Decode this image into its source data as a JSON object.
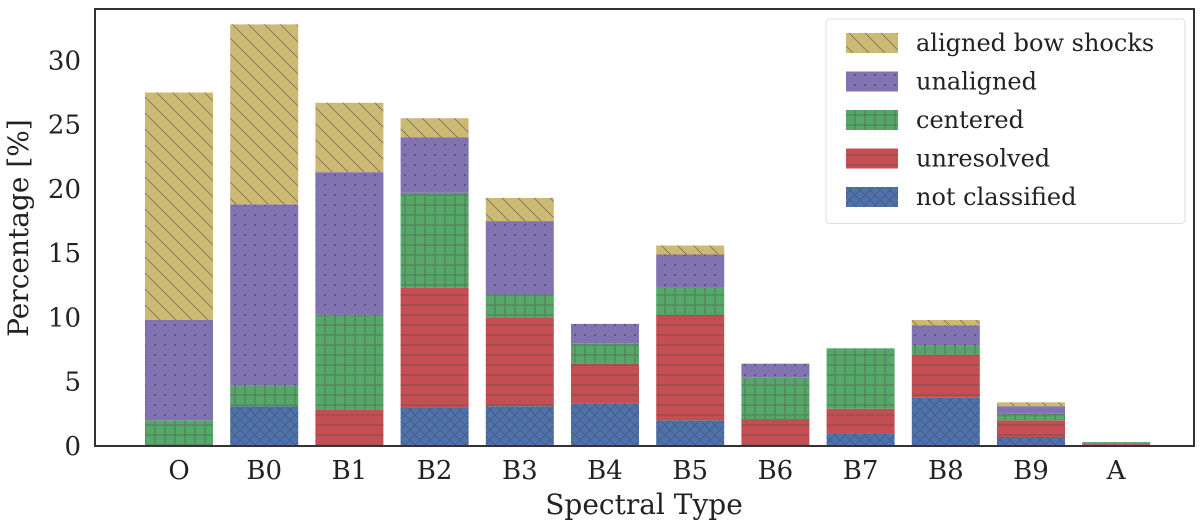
{
  "chart_data": {
    "type": "bar",
    "stacked": true,
    "title": "",
    "xlabel": "Spectral Type",
    "ylabel": "Percentage [%]",
    "ylim": [
      0,
      34
    ],
    "yticks": [
      0,
      5,
      10,
      15,
      20,
      25,
      30
    ],
    "grid": false,
    "legend_position": "top-right",
    "categories": [
      "O",
      "B0",
      "B1",
      "B2",
      "B3",
      "B4",
      "B5",
      "B6",
      "B7",
      "B8",
      "B9",
      "A"
    ],
    "series": [
      {
        "name": "not classified",
        "color": "#4c72b0",
        "hatch": "crosshatch",
        "values": [
          0,
          3.1,
          0,
          3.0,
          3.1,
          3.3,
          2.0,
          0,
          1.0,
          3.8,
          0.7,
          0.1
        ]
      },
      {
        "name": "unresolved",
        "color": "#c44e52",
        "hatch": "horizontal",
        "values": [
          0,
          0,
          2.8,
          9.3,
          6.9,
          3.1,
          8.2,
          2.1,
          1.9,
          3.3,
          1.3,
          0.1
        ]
      },
      {
        "name": "centered",
        "color": "#55a868",
        "hatch": "grid",
        "values": [
          2.0,
          1.6,
          7.4,
          7.4,
          1.8,
          1.6,
          2.1,
          3.2,
          4.7,
          0.7,
          0.5,
          0.1
        ]
      },
      {
        "name": "unaligned",
        "color": "#8172b2",
        "hatch": "dots",
        "values": [
          7.8,
          14.1,
          11.1,
          4.3,
          5.7,
          1.5,
          2.6,
          1.1,
          0,
          1.6,
          0.6,
          0
        ]
      },
      {
        "name": "aligned bow shocks",
        "color": "#ccb974",
        "hatch": "diagonal",
        "values": [
          17.7,
          14.0,
          5.4,
          1.5,
          1.8,
          0,
          0.7,
          0,
          0,
          0.4,
          0.3,
          0
        ]
      }
    ],
    "legend_order": [
      "aligned bow shocks",
      "unaligned",
      "centered",
      "unresolved",
      "not classified"
    ]
  }
}
